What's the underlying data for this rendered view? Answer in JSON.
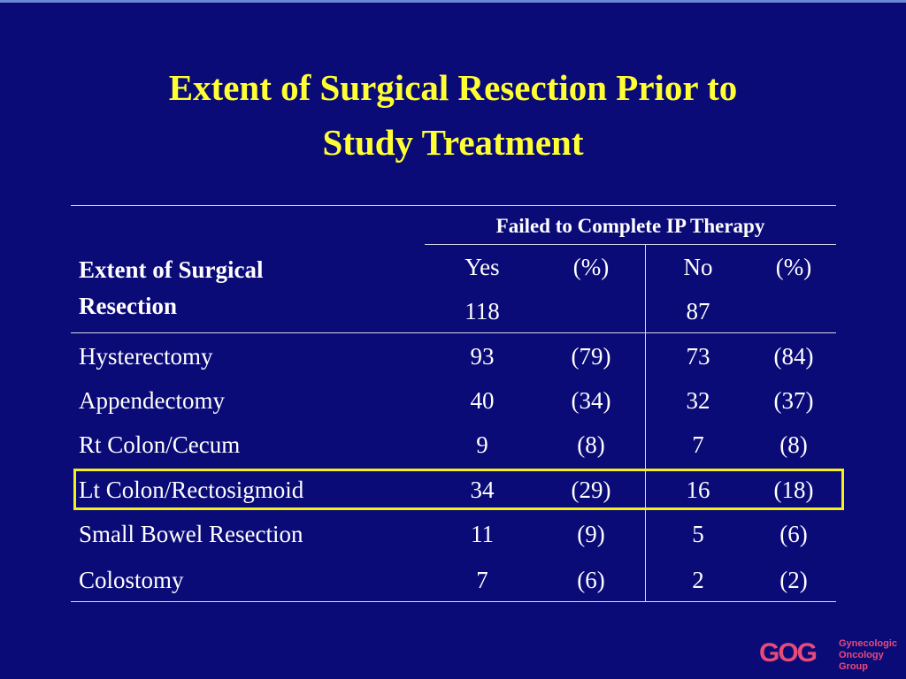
{
  "slide": {
    "title_line1": "Extent of Surgical Resection Prior to",
    "title_line2": "Study Treatment"
  },
  "table": {
    "group_header": "Failed to Complete IP Therapy",
    "row_header_line1": "Extent of Surgical",
    "row_header_line2": "Resection",
    "columns": [
      {
        "label": "Yes",
        "n": "118"
      },
      {
        "label": "(%)",
        "n": ""
      },
      {
        "label": "No",
        "n": "87"
      },
      {
        "label": "(%)",
        "n": ""
      }
    ],
    "rows": [
      {
        "label": "Hysterectomy",
        "yes": "93",
        "yes_pct": "(79)",
        "no": "73",
        "no_pct": "(84)"
      },
      {
        "label": "Appendectomy",
        "yes": "40",
        "yes_pct": "(34)",
        "no": "32",
        "no_pct": "(37)"
      },
      {
        "label": "Rt Colon/Cecum",
        "yes": "9",
        "yes_pct": "(8)",
        "no": "7",
        "no_pct": "(8)"
      },
      {
        "label": "Lt Colon/Rectosigmoid",
        "yes": "34",
        "yes_pct": "(29)",
        "no": "16",
        "no_pct": "(18)"
      },
      {
        "label": "Small Bowel Resection",
        "yes": "11",
        "yes_pct": "(9)",
        "no": "5",
        "no_pct": "(6)"
      },
      {
        "label": "Colostomy",
        "yes": "7",
        "yes_pct": "(6)",
        "no": "2",
        "no_pct": "(2)"
      }
    ],
    "highlight_color": "#f4f01c"
  },
  "logo": {
    "mark": "GOG",
    "line1": "Gynecologic",
    "line2": "Oncology",
    "line3": "Group"
  },
  "colors": {
    "background": "#0b0b78",
    "title": "#ffff33",
    "text": "#ffffff",
    "logo": "#e84a7a"
  }
}
